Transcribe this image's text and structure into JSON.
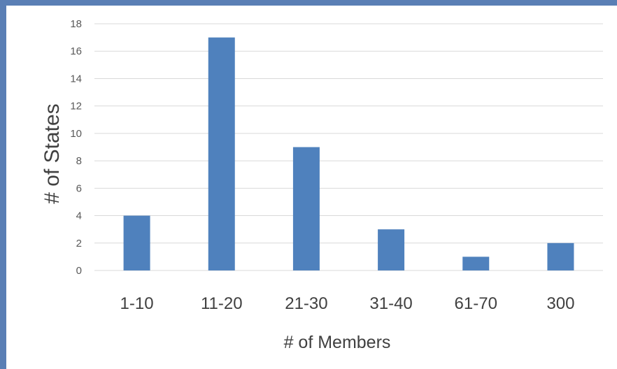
{
  "chart_data": {
    "type": "bar",
    "categories": [
      "1-10",
      "11-20",
      "21-30",
      "31-40",
      "61-70",
      "300"
    ],
    "values": [
      4,
      17,
      9,
      3,
      1,
      2
    ],
    "xlabel": "# of Members",
    "ylabel": "# of States",
    "ylim": [
      0,
      18
    ],
    "yticks": [
      0,
      2,
      4,
      6,
      8,
      10,
      12,
      14,
      16,
      18
    ],
    "grid": true,
    "bar_color": "#4f81bd",
    "grid_color": "#d9d9d9"
  }
}
